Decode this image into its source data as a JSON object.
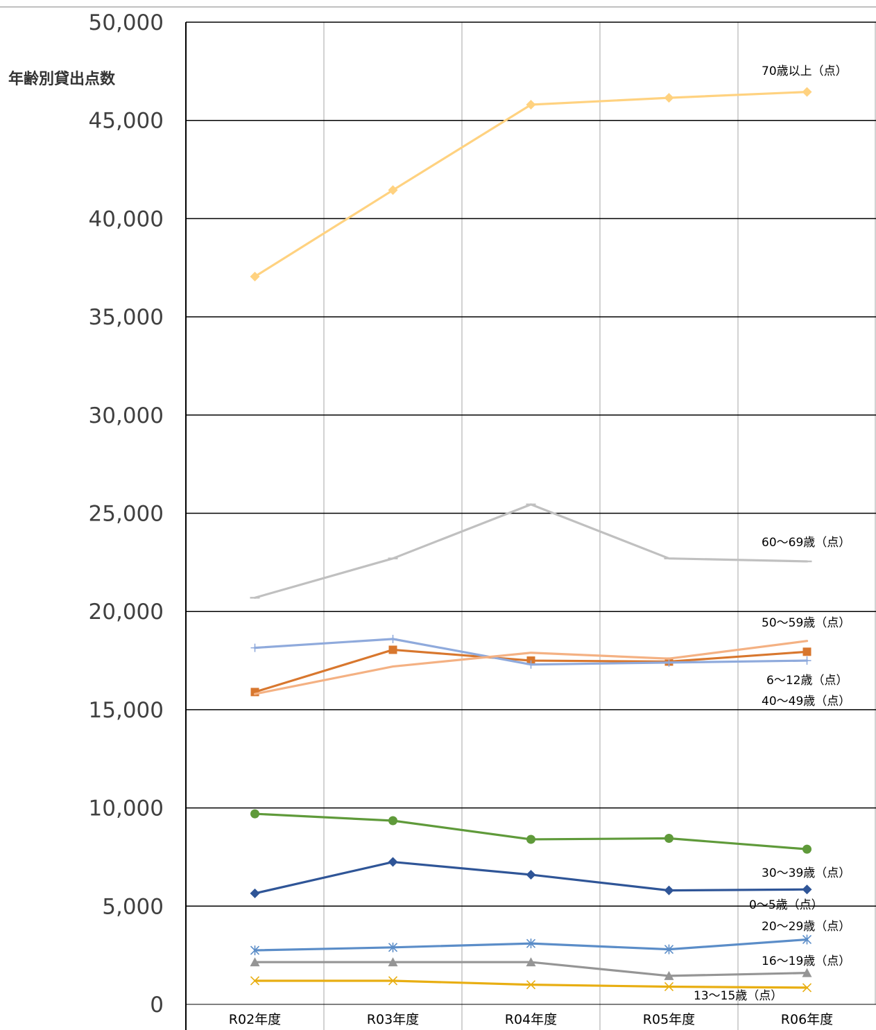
{
  "chart_data": {
    "type": "line",
    "ylabel": "年齢別貸出点数",
    "xlabel": "",
    "categories": [
      "R02年度",
      "R03年度",
      "R04年度",
      "R05年度",
      "R06年度"
    ],
    "ylim": [
      0,
      50000
    ],
    "yticks": [
      "0",
      "5,000",
      "10,000",
      "15,000",
      "20,000",
      "25,000",
      "30,000",
      "35,000",
      "40,000",
      "45,000",
      "50,000"
    ],
    "grid": true,
    "series": [
      {
        "name": "70歳以上（点）",
        "values": [
          37050,
          41450,
          45800,
          46150,
          46450
        ],
        "color": "#FFD280",
        "marker": "diamond"
      },
      {
        "name": "60～69歳（点）",
        "values": [
          20700,
          22700,
          25450,
          22700,
          22550
        ],
        "color": "#C0C0C0",
        "marker": "dash"
      },
      {
        "name": "50～59歳（点）",
        "values": [
          15800,
          17200,
          17900,
          17600,
          18500
        ],
        "color": "#F4B183",
        "marker": "none"
      },
      {
        "name": "6～12歳（点）",
        "values": [
          18150,
          18600,
          17300,
          17400,
          17500
        ],
        "color": "#8FAADC",
        "marker": "plus"
      },
      {
        "name": "40～49歳（点）",
        "values": [
          15900,
          18050,
          17500,
          17450,
          17950
        ],
        "color": "#D8772E",
        "marker": "square"
      },
      {
        "name": "30～39歳（点）",
        "values": [
          9700,
          9350,
          8400,
          8450,
          7900
        ],
        "color": "#5F9A3A",
        "marker": "circle"
      },
      {
        "name": "0～5歳（点）",
        "values": [
          5650,
          7250,
          6600,
          5800,
          5850
        ],
        "color": "#2F5597",
        "marker": "diamond"
      },
      {
        "name": "20～29歳（点）",
        "values": [
          2750,
          2900,
          3100,
          2800,
          3300
        ],
        "color": "#5B8DC8",
        "marker": "asterisk"
      },
      {
        "name": "16～19歳（点）",
        "values": [
          2150,
          2150,
          2150,
          1450,
          1600
        ],
        "color": "#959595",
        "marker": "triangle"
      },
      {
        "name": "13～15歳（点）",
        "values": [
          1200,
          1200,
          1000,
          900,
          850
        ],
        "color": "#E8AE12",
        "marker": "x"
      }
    ]
  }
}
